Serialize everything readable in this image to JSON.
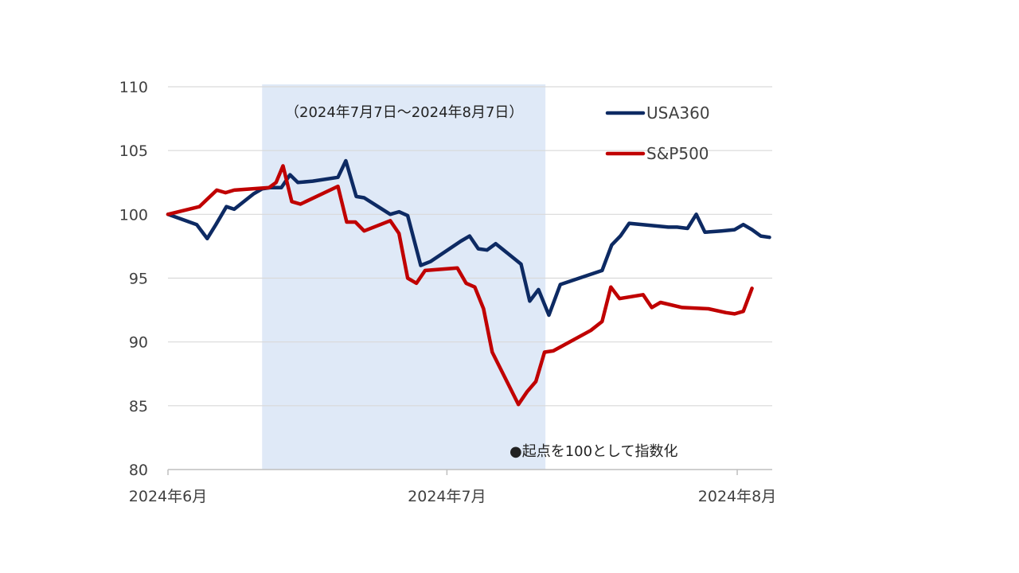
{
  "chart_data": {
    "type": "line",
    "title": "",
    "xlabel": "",
    "ylabel": "",
    "ylim": [
      80,
      110
    ],
    "y_ticks": [
      80,
      85,
      90,
      95,
      100,
      105,
      110
    ],
    "x_range": [
      0,
      68
    ],
    "x_tick_positions": [
      0,
      32,
      65.3
    ],
    "x_ticks": [
      "2024年6月",
      "2024年7月",
      "2024年8月"
    ],
    "grid": true,
    "highlight": {
      "from": 10.8,
      "to": 43.3,
      "label": "（2024年7月7日～2024年8月7日）",
      "color": "#dfe9f7"
    },
    "note": "●起点を100として指数化",
    "legend_position": "top-right",
    "series": [
      {
        "name": "USA360",
        "color": "#0d2a63",
        "points": [
          [
            0,
            100
          ],
          [
            3.3,
            99.2
          ],
          [
            4.5,
            98.1
          ],
          [
            5.5,
            99.2
          ],
          [
            6.7,
            100.6
          ],
          [
            7.6,
            100.4
          ],
          [
            9.8,
            101.6
          ],
          [
            10.8,
            102
          ],
          [
            11.8,
            102.1
          ],
          [
            13,
            102.1
          ],
          [
            14,
            103.1
          ],
          [
            14.9,
            102.5
          ],
          [
            16.6,
            102.6
          ],
          [
            19.5,
            102.9
          ],
          [
            20.4,
            104.2
          ],
          [
            21.6,
            101.4
          ],
          [
            22.5,
            101.3
          ],
          [
            25.5,
            100
          ],
          [
            26.5,
            100.2
          ],
          [
            27.5,
            99.9
          ],
          [
            29,
            96
          ],
          [
            30.1,
            96.3
          ],
          [
            33.6,
            97.9
          ],
          [
            34.6,
            98.3
          ],
          [
            35.6,
            97.3
          ],
          [
            36.6,
            97.2
          ],
          [
            37.6,
            97.7
          ],
          [
            40.5,
            96.1
          ],
          [
            41.5,
            93.2
          ],
          [
            42.5,
            94.1
          ],
          [
            43.7,
            92.1
          ],
          [
            45,
            94.5
          ],
          [
            49.8,
            95.6
          ],
          [
            50.9,
            97.6
          ],
          [
            51.9,
            98.3
          ],
          [
            52.9,
            99.3
          ],
          [
            57.4,
            99
          ],
          [
            58.4,
            99
          ],
          [
            59.6,
            98.9
          ],
          [
            60.6,
            100
          ],
          [
            61.6,
            98.6
          ],
          [
            63.5,
            98.7
          ],
          [
            65,
            98.8
          ],
          [
            66,
            99.2
          ],
          [
            67,
            98.8
          ],
          [
            68,
            98.3
          ],
          [
            69,
            98.2
          ]
        ]
      },
      {
        "name": "S&P500",
        "color": "#c00000",
        "points": [
          [
            0,
            100
          ],
          [
            3.6,
            100.6
          ],
          [
            5.6,
            101.9
          ],
          [
            6.6,
            101.7
          ],
          [
            7.6,
            101.9
          ],
          [
            11.6,
            102.1
          ],
          [
            12.4,
            102.5
          ],
          [
            13.2,
            103.8
          ],
          [
            14.2,
            101
          ],
          [
            15.2,
            100.8
          ],
          [
            19.5,
            102.2
          ],
          [
            20.5,
            99.4
          ],
          [
            21.5,
            99.4
          ],
          [
            22.5,
            98.7
          ],
          [
            25.5,
            99.5
          ],
          [
            26.5,
            98.5
          ],
          [
            27.5,
            95
          ],
          [
            28.5,
            94.6
          ],
          [
            29.5,
            95.6
          ],
          [
            33.2,
            95.8
          ],
          [
            34.2,
            94.6
          ],
          [
            35.2,
            94.3
          ],
          [
            36.2,
            92.6
          ],
          [
            37.2,
            89.2
          ],
          [
            40.2,
            85.1
          ],
          [
            41.2,
            86.1
          ],
          [
            42.2,
            86.9
          ],
          [
            43.2,
            89.2
          ],
          [
            44.2,
            89.3
          ],
          [
            48.5,
            90.9
          ],
          [
            49.8,
            91.6
          ],
          [
            50.8,
            94.3
          ],
          [
            51.8,
            93.4
          ],
          [
            54.5,
            93.7
          ],
          [
            55.5,
            92.7
          ],
          [
            56.5,
            93.1
          ],
          [
            59,
            92.7
          ],
          [
            62,
            92.6
          ],
          [
            64,
            92.3
          ],
          [
            65,
            92.2
          ],
          [
            66,
            92.4
          ],
          [
            67,
            94.2
          ]
        ]
      }
    ]
  }
}
